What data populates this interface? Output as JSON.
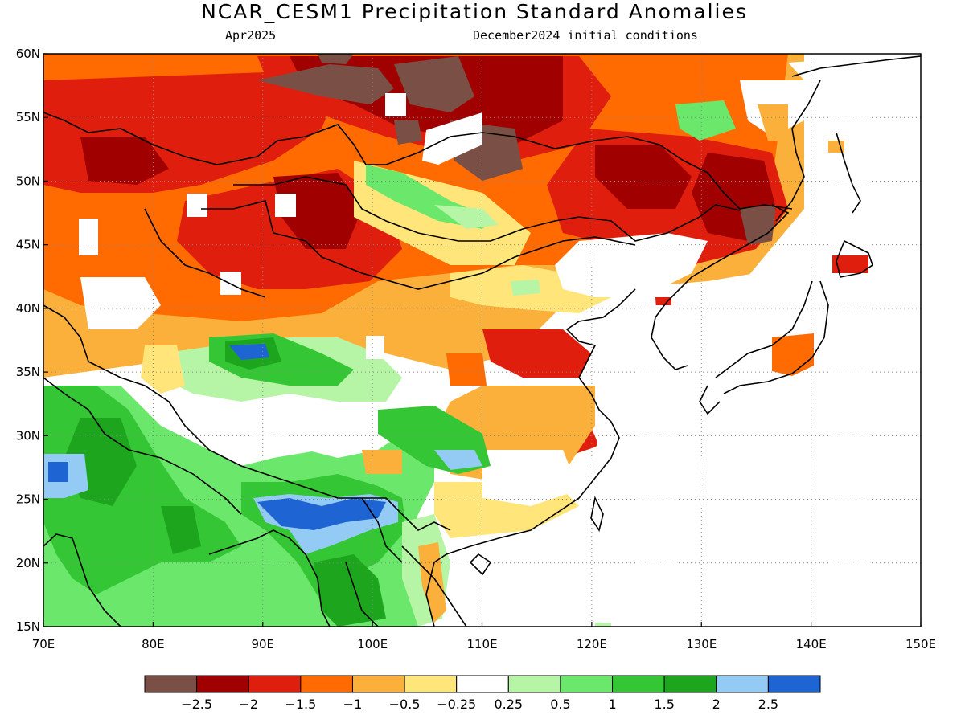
{
  "header": {
    "title": "NCAR_CESM1 Precipitation Standard Anomalies",
    "target_month": "Apr2025",
    "init": "December2024 initial conditions"
  },
  "map": {
    "region": "East Asia",
    "lon_range": [
      70,
      150
    ],
    "lat_range": [
      15,
      60
    ],
    "lat_ticks": [
      "15N",
      "20N",
      "25N",
      "30N",
      "35N",
      "40N",
      "45N",
      "50N",
      "55N",
      "60N"
    ],
    "lon_ticks": [
      "70E",
      "80E",
      "90E",
      "100E",
      "110E",
      "120E",
      "130E",
      "140E",
      "150E"
    ]
  },
  "colorbar": {
    "colors": [
      "#7a5046",
      "#a00000",
      "#e01e0e",
      "#ff6b00",
      "#fbb03b",
      "#ffe57a",
      "#ffffff",
      "#b6f5a6",
      "#6be86b",
      "#34c634",
      "#1ea51e",
      "#94cbf5",
      "#1e64d2"
    ],
    "labels": [
      "−2.5",
      "−2",
      "−1.5",
      "−1",
      "−0.5",
      "−0.25",
      "0.25",
      "0.5",
      "1",
      "1.5",
      "2",
      "2.5"
    ]
  },
  "chart_data": {
    "type": "heatmap",
    "title": "NCAR_CESM1 Precipitation Standard Anomalies",
    "subtitle": "Apr2025  December2024 initial conditions",
    "xlabel": "",
    "ylabel": "",
    "xlim": [
      70,
      150
    ],
    "ylim": [
      15,
      60
    ],
    "levels": [
      -2.5,
      -2,
      -1.5,
      -1,
      -0.5,
      -0.25,
      0.25,
      0.5,
      1,
      1.5,
      2,
      2.5
    ],
    "features": [
      {
        "region": "Central Asia / Siberia (lon 70-105, lat 45-60)",
        "anomaly": "strong negative, -1.5 to below -2.5"
      },
      {
        "region": "Lake Baikal area (lon 100-110, lat 50-58)",
        "anomaly": "below -2.5"
      },
      {
        "region": "Northeast China (lon 120-135, lat 42-52)",
        "anomaly": "negative, -1.5 to below -2.5"
      },
      {
        "region": "Mongolia / Inner Mongolia strip (lon 100-108, lat 46-50)",
        "anomaly": "positive, 0.5 to 1.5"
      },
      {
        "region": "Tibetan Plateau (lon 85-105, lat 28-36)",
        "anomaly": "positive, 0.5 to 2.5"
      },
      {
        "region": "South Asia (lon 70-85, lat 15-30)",
        "anomaly": "positive, 0.5 to 2.5"
      },
      {
        "region": "Myanmar / Bangladesh (lon 88-103, lat 15-26)",
        "anomaly": "positive, 1 to above 2.5"
      },
      {
        "region": "Eastern China (lon 110-120, lat 28-38)",
        "anomaly": "negative, -0.5 to -2"
      },
      {
        "region": "South China (lon 106-120, lat 22-28)",
        "anomaly": "near zero to -0.5"
      }
    ]
  }
}
